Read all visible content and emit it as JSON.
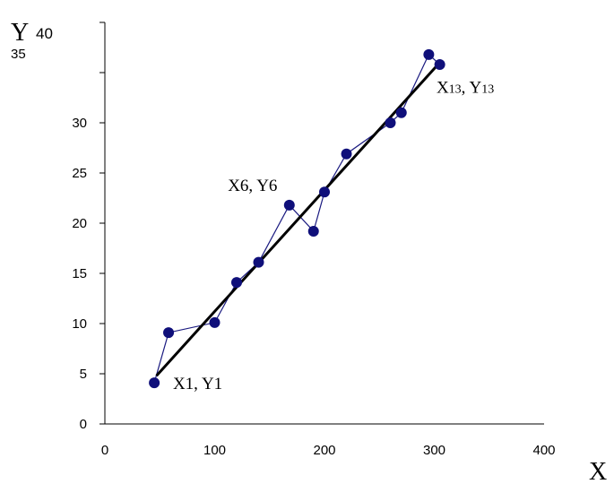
{
  "chart_data": {
    "type": "scatter",
    "xlabel": "X",
    "ylabel": "Y",
    "xlim": [
      0,
      400
    ],
    "ylim": [
      0,
      40
    ],
    "x_ticks": [
      0,
      100,
      200,
      300,
      400
    ],
    "y_ticks": [
      0,
      5,
      10,
      15,
      20,
      25,
      30,
      35,
      40
    ],
    "y_tick_labels_printed": [
      "0",
      "5",
      "10",
      "15",
      "20",
      "25",
      "30"
    ],
    "grid": false,
    "series": [
      {
        "color": "#1a1a80",
        "marker_color": "#0f0f7a",
        "style": "line-with-markers",
        "points": [
          [
            45,
            4.1
          ],
          [
            58,
            9.1
          ],
          [
            100,
            10.1
          ],
          [
            120,
            14.1
          ],
          [
            140,
            16.1
          ],
          [
            168,
            21.8
          ],
          [
            190,
            19.2
          ],
          [
            200,
            23.1
          ],
          [
            220,
            26.9
          ],
          [
            260,
            30.0
          ],
          [
            270,
            31.0
          ],
          [
            295,
            36.8
          ],
          [
            305,
            35.8
          ]
        ]
      }
    ],
    "trendline": {
      "color": "#000000",
      "from": [
        47,
        4.8
      ],
      "to": [
        305,
        36.0
      ]
    },
    "annotations": [
      {
        "id": "first",
        "main1": "X1, Y1",
        "x": 62,
        "y": 3.5
      },
      {
        "id": "sixth",
        "main1": "X6, Y6",
        "x": 112,
        "y": 23.2
      },
      {
        "id": "last",
        "main1": "X",
        "sub1": "13",
        "main2": ", Y",
        "sub2": "13",
        "x": 302,
        "y": 33.0
      }
    ],
    "y_top_labels": {
      "label40": "40",
      "label35": "35"
    }
  }
}
